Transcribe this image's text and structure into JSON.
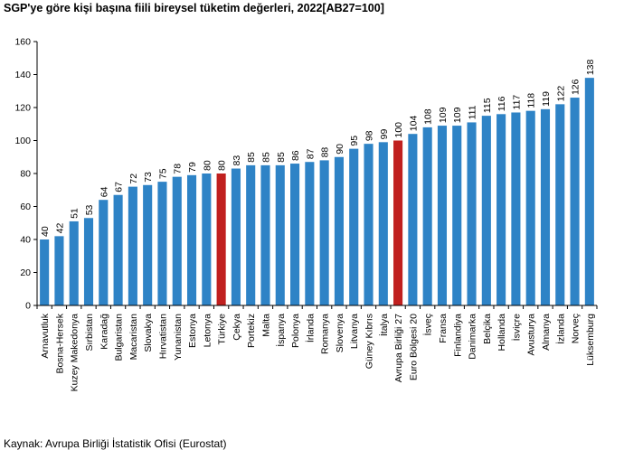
{
  "chart_data": {
    "type": "bar",
    "title": "SGP'ye göre kişi başına fiili bireysel tüketim değerleri, 2022[AB27=100]",
    "xlabel": "",
    "ylabel": "",
    "ylim": [
      0,
      160
    ],
    "yticks": [
      "0",
      "20",
      "40",
      "60",
      "80",
      "100",
      "120",
      "140",
      "160"
    ],
    "grid": false,
    "legend": "none",
    "categories": [
      "Arnavutluk",
      "Bosna-Hersek",
      "Kuzey Makedonya",
      "Sırbistan",
      "Karadağ",
      "Bulgaristan",
      "Macaristan",
      "Slovakya",
      "Hırvatistan",
      "Yunanistan",
      "Estonya",
      "Letonya",
      "Türkiye",
      "Çekya",
      "Portekiz",
      "Malta",
      "İspanya",
      "Polonya",
      "İrlanda",
      "Romanya",
      "Slovenya",
      "Litvanya",
      "Güney Kıbrıs",
      "İtalya",
      "Avrupa Birliği 27",
      "Euro Bölgesi 20",
      "İsveç",
      "Fransa",
      "Finlandiya",
      "Danimarka",
      "Belçika",
      "Hollanda",
      "İsviçre",
      "Avusturya",
      "Almanya",
      "İzlanda",
      "Norveç",
      "Lüksemburg"
    ],
    "values": [
      40,
      42,
      51,
      53,
      64,
      67,
      72,
      73,
      75,
      78,
      79,
      80,
      80,
      83,
      85,
      85,
      85,
      86,
      87,
      88,
      90,
      95,
      98,
      99,
      100,
      104,
      108,
      109,
      109,
      111,
      115,
      116,
      117,
      118,
      119,
      122,
      126,
      138
    ],
    "colors": {
      "default": "#2e83c6",
      "highlight": "#c0201f"
    },
    "highlight": [
      "Türkiye",
      "Avrupa Birliği 27"
    ]
  },
  "source": "Kaynak: Avrupa Birliği İstatistik Ofisi (Eurostat)"
}
